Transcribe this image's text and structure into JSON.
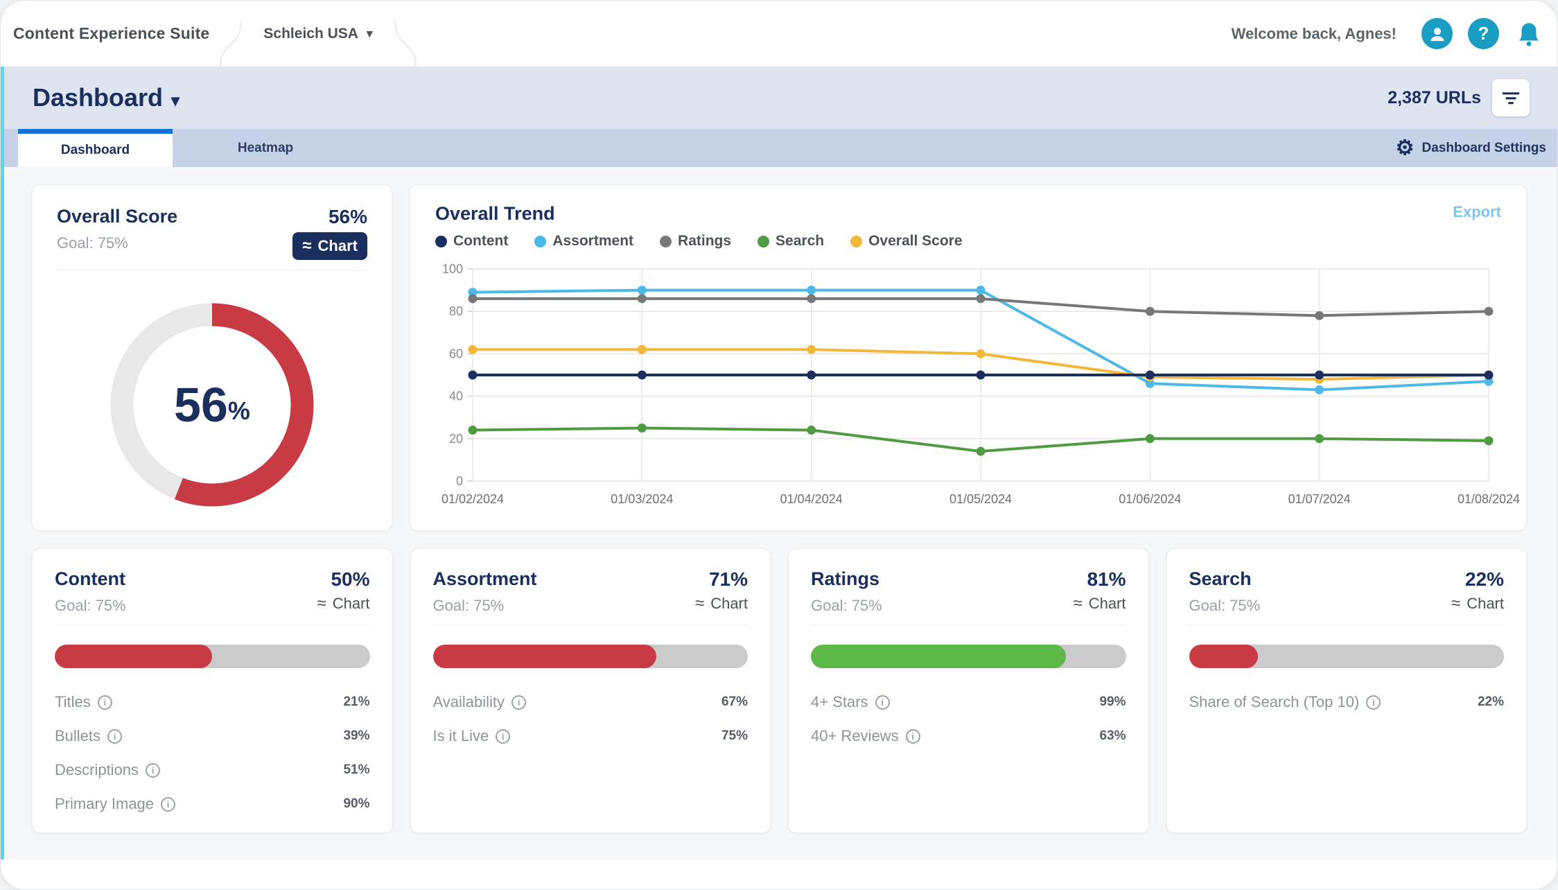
{
  "topbar": {
    "brand": "Content Experience Suite",
    "account": "Schleich USA",
    "welcome": "Welcome back, Agnes!"
  },
  "header": {
    "title": "Dashboard",
    "url_count": "2,387 URLs"
  },
  "tab_bar": {
    "tabs": [
      {
        "label": "Dashboard"
      },
      {
        "label": "Heatmap"
      }
    ],
    "settings_label": "Dashboard Settings"
  },
  "score_card": {
    "title": "Overall Score",
    "goal": "Goal: 75%",
    "value": "56%",
    "chart_label": "Chart",
    "percent": 56,
    "center_value": "56",
    "center_unit": "%",
    "arc_color": "#c93b44",
    "track_color": "#e8e8e8"
  },
  "trend_card": {
    "title": "Overall Trend",
    "export_label": "Export",
    "legend": [
      {
        "label": "Content",
        "color": "#1b2f5e"
      },
      {
        "label": "Assortment",
        "color": "#4cb9e8"
      },
      {
        "label": "Ratings",
        "color": "#787878"
      },
      {
        "label": "Search",
        "color": "#4f9a43"
      },
      {
        "label": "Overall Score",
        "color": "#f3b73a"
      }
    ]
  },
  "chart_data": {
    "type": "line",
    "title": "Overall Trend",
    "x": [
      "01/02/2024",
      "01/03/2024",
      "01/04/2024",
      "01/05/2024",
      "01/06/2024",
      "01/07/2024",
      "01/08/2024"
    ],
    "series": [
      {
        "name": "Content",
        "color": "#1b2f5e",
        "values": [
          50,
          50,
          50,
          50,
          50,
          50,
          50
        ]
      },
      {
        "name": "Assortment",
        "color": "#4cb9e8",
        "values": [
          89,
          90,
          90,
          90,
          46,
          43,
          47
        ]
      },
      {
        "name": "Ratings",
        "color": "#787878",
        "values": [
          86,
          86,
          86,
          86,
          80,
          78,
          80
        ]
      },
      {
        "name": "Search",
        "color": "#4f9a43",
        "values": [
          24,
          25,
          24,
          14,
          20,
          20,
          19
        ]
      },
      {
        "name": "Overall Score",
        "color": "#f3b73a",
        "values": [
          62,
          62,
          62,
          60,
          49,
          48,
          50
        ]
      }
    ],
    "ylim": [
      0,
      100
    ],
    "yticks": [
      0,
      20,
      40,
      60,
      80,
      100
    ],
    "grid": true,
    "legend_position": "top"
  },
  "metric_cards": [
    {
      "title": "Content",
      "value": "50%",
      "goal": "Goal: 75%",
      "chart_label": "Chart",
      "progress": 50,
      "bar_color": "#c93b44",
      "rows": [
        {
          "label": "Titles",
          "value": "21%"
        },
        {
          "label": "Bullets",
          "value": "39%"
        },
        {
          "label": "Descriptions",
          "value": "51%"
        },
        {
          "label": "Primary Image",
          "value": "90%"
        }
      ]
    },
    {
      "title": "Assortment",
      "value": "71%",
      "goal": "Goal: 75%",
      "chart_label": "Chart",
      "progress": 71,
      "bar_color": "#c93b44",
      "rows": [
        {
          "label": "Availability",
          "value": "67%"
        },
        {
          "label": "Is it Live",
          "value": "75%"
        }
      ]
    },
    {
      "title": "Ratings",
      "value": "81%",
      "goal": "Goal: 75%",
      "chart_label": "Chart",
      "progress": 81,
      "bar_color": "#5cb947",
      "rows": [
        {
          "label": "4+ Stars",
          "value": "99%"
        },
        {
          "label": "40+ Reviews",
          "value": "63%"
        }
      ]
    },
    {
      "title": "Search",
      "value": "22%",
      "goal": "Goal: 75%",
      "chart_label": "Chart",
      "progress": 22,
      "bar_color": "#c93b44",
      "rows": [
        {
          "label": "Share of Search (Top 10)",
          "value": "22%"
        }
      ]
    }
  ]
}
